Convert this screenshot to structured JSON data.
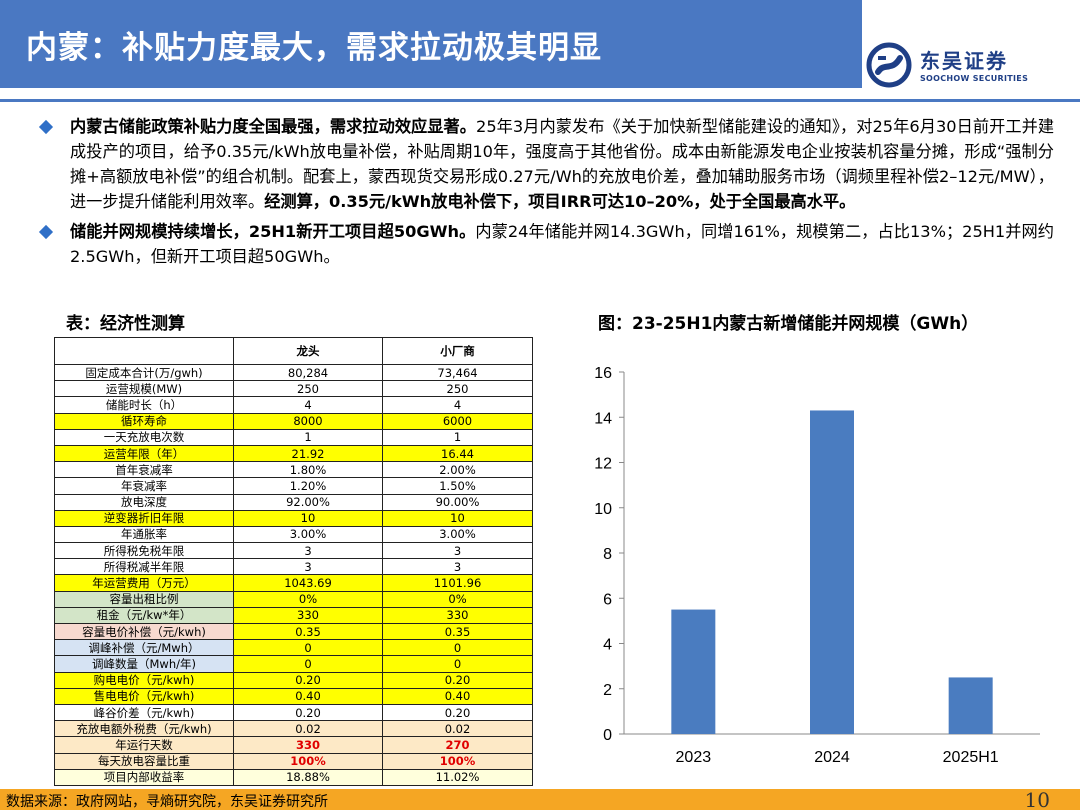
{
  "header": {
    "title": "内蒙：补贴力度最大，需求拉动极其明显",
    "logo_cn": "东吴证券",
    "logo_en": "SOOCHOW SECURITIES",
    "logo_icon": "soochow-s-logo-icon"
  },
  "bullets": [
    {
      "bold_lead": "内蒙古储能政策补贴力度全国最强，需求拉动效应显著。",
      "body": "25年3月内蒙发布《关于加快新型储能建设的通知》，对25年6月30日前开工并建成投产的项目，给予0.35元/kWh放电量补偿，补贴周期10年，强度高于其他省份。成本由新能源发电企业按装机容量分摊，形成“强制分摊+高额放电补偿”的组合机制。配套上，蒙西现货交易形成0.27元/Wh的充放电价差，叠加辅助服务市场（调频里程补偿2–12元/MW），进一步提升储能利用效率。",
      "bold_tail": "经测算，0.35元/kWh放电补偿下，项目IRR可达10–20%，处于全国最高水平。"
    },
    {
      "bold_lead": "储能并网规模持续增长，25H1新开工项目超50GWh。",
      "body": "内蒙24年储能并网14.3GWh，同增161%，规模第二，占比13%；25H1并网约2.5GWh，但新开工项目超50GWh。",
      "bold_tail": ""
    }
  ],
  "table_title": "表：经济性测算",
  "chart_title": "图：23-25H1内蒙古新增储能并网规模（GWh）",
  "table": {
    "columns": [
      "",
      "龙头",
      "小厂商"
    ],
    "rows": [
      {
        "label": "固定成本合计(万/gwh)",
        "a": "80,284",
        "b": "73,464",
        "style": ""
      },
      {
        "label": "运营规模(MW)",
        "a": "250",
        "b": "250",
        "style": ""
      },
      {
        "label": "储能时长（h）",
        "a": "4",
        "b": "4",
        "style": ""
      },
      {
        "label": "循环寿命",
        "a": "8000",
        "b": "6000",
        "style": "yellow"
      },
      {
        "label": "一天充放电次数",
        "a": "1",
        "b": "1",
        "style": ""
      },
      {
        "label": "运营年限（年）",
        "a": "21.92",
        "b": "16.44",
        "style": "yellow"
      },
      {
        "label": "首年衰减率",
        "a": "1.80%",
        "b": "2.00%",
        "style": ""
      },
      {
        "label": "年衰减率",
        "a": "1.20%",
        "b": "1.50%",
        "style": ""
      },
      {
        "label": "放电深度",
        "a": "92.00%",
        "b": "90.00%",
        "style": ""
      },
      {
        "label": "逆变器折旧年限",
        "a": "10",
        "b": "10",
        "style": "yellow"
      },
      {
        "label": "年通胀率",
        "a": "3.00%",
        "b": "3.00%",
        "style": ""
      },
      {
        "label": "所得税免税年限",
        "a": "3",
        "b": "3",
        "style": ""
      },
      {
        "label": "所得税减半年限",
        "a": "3",
        "b": "3",
        "style": ""
      },
      {
        "label": "年运营费用（万元）",
        "a": "1043.69",
        "b": "1101.96",
        "style": "yellow"
      },
      {
        "label": "容量出租比例",
        "a": "0%",
        "b": "0%",
        "style": "green"
      },
      {
        "label": "租金（元/kw*年）",
        "a": "330",
        "b": "330",
        "style": "green"
      },
      {
        "label": "容量电价补偿（元/kwh)",
        "a": "0.35",
        "b": "0.35",
        "style": "pink"
      },
      {
        "label": "调峰补偿（元/Mwh）",
        "a": "0",
        "b": "0",
        "style": "blue"
      },
      {
        "label": "调峰数量（Mwh/年)",
        "a": "0",
        "b": "0",
        "style": "blue"
      },
      {
        "label": "购电电价（元/kwh)",
        "a": "0.20",
        "b": "0.20",
        "style": "yellow"
      },
      {
        "label": "售电电价（元/kwh)",
        "a": "0.40",
        "b": "0.40",
        "style": "yellow"
      },
      {
        "label": "峰谷价差（元/kwh)",
        "a": "0.20",
        "b": "0.20",
        "style": ""
      },
      {
        "label": "充放电额外税费（元/kwh)",
        "a": "0.02",
        "b": "0.02",
        "style": "cream"
      },
      {
        "label": "年运行天数",
        "a": "330",
        "b": "270",
        "style": "cream-red"
      },
      {
        "label": "每天放电容量比重",
        "a": "100%",
        "b": "100%",
        "style": "cream-red"
      },
      {
        "label": "项目内部收益率",
        "a": "18.88%",
        "b": "11.02%",
        "style": "lightyellow"
      }
    ]
  },
  "chart_data": {
    "type": "bar",
    "title": "图：23-25H1内蒙古新增储能并网规模（GWh）",
    "categories": [
      "2023",
      "2024",
      "2025H1"
    ],
    "values": [
      5.5,
      14.3,
      2.5
    ],
    "ylim": [
      0,
      16
    ],
    "yticks": [
      "0",
      "2",
      "4",
      "6",
      "8",
      "10",
      "12",
      "14",
      "16"
    ],
    "bar_color": "#4a7cc0",
    "grid": false,
    "legend": "none"
  },
  "footer": {
    "source": "数据来源：政府网站，寻熵研究院，东吴证券研究所",
    "page_number": "10"
  },
  "colors": {
    "brand_blue": "#4a78c2",
    "footer_orange": "#f5a623",
    "highlight_yellow": "#ffff00"
  }
}
